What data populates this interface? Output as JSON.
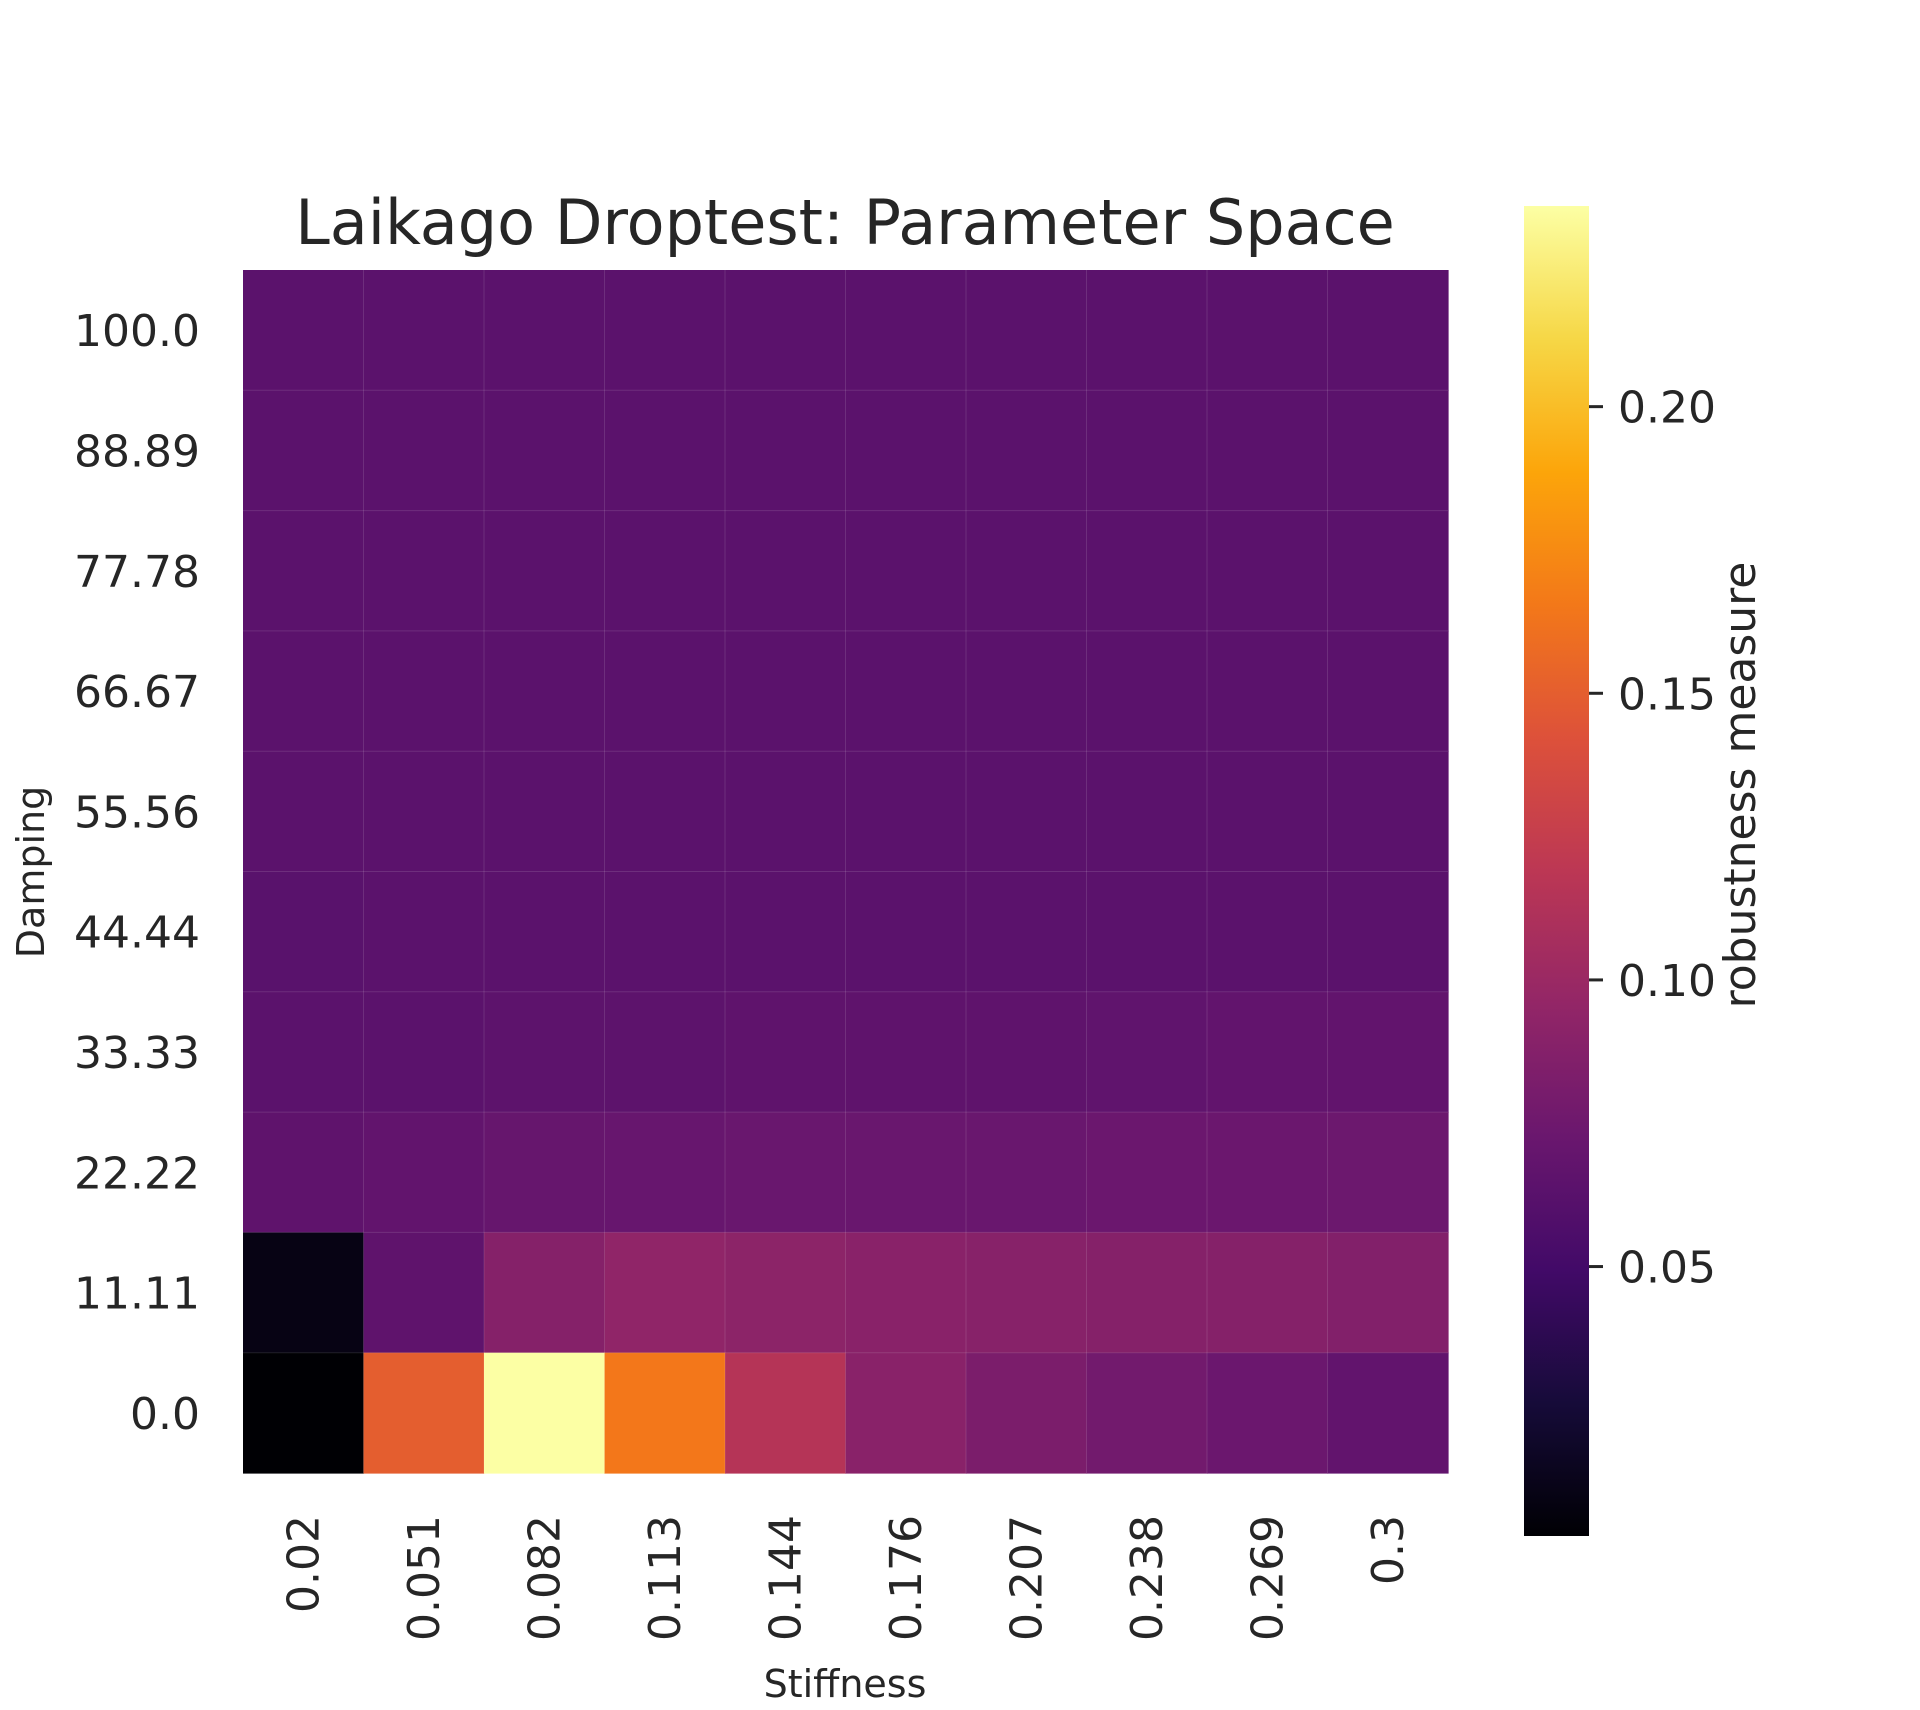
{
  "chart_data": {
    "type": "heatmap",
    "title": "Laikago Droptest: Parameter Space",
    "xlabel": "Stiffness",
    "ylabel": "Damping",
    "x_categories": [
      "0.02",
      "0.051",
      "0.082",
      "0.113",
      "0.144",
      "0.176",
      "0.207",
      "0.238",
      "0.269",
      "0.3"
    ],
    "y_categories": [
      "100.0",
      "88.89",
      "77.78",
      "66.67",
      "55.56",
      "44.44",
      "33.33",
      "22.22",
      "11.11",
      "0.0"
    ],
    "values": [
      [
        0.064,
        0.064,
        0.064,
        0.064,
        0.064,
        0.064,
        0.064,
        0.064,
        0.064,
        0.064
      ],
      [
        0.064,
        0.064,
        0.064,
        0.064,
        0.064,
        0.064,
        0.064,
        0.064,
        0.064,
        0.064
      ],
      [
        0.064,
        0.064,
        0.064,
        0.064,
        0.064,
        0.064,
        0.064,
        0.064,
        0.064,
        0.064
      ],
      [
        0.064,
        0.064,
        0.064,
        0.064,
        0.064,
        0.064,
        0.064,
        0.064,
        0.064,
        0.064
      ],
      [
        0.064,
        0.064,
        0.064,
        0.064,
        0.064,
        0.064,
        0.064,
        0.064,
        0.064,
        0.064
      ],
      [
        0.063,
        0.064,
        0.064,
        0.064,
        0.064,
        0.064,
        0.064,
        0.064,
        0.064,
        0.064
      ],
      [
        0.064,
        0.064,
        0.065,
        0.065,
        0.066,
        0.066,
        0.066,
        0.067,
        0.068,
        0.068
      ],
      [
        0.066,
        0.068,
        0.07,
        0.071,
        0.072,
        0.072,
        0.072,
        0.073,
        0.073,
        0.074
      ],
      [
        0.01,
        0.066,
        0.088,
        0.094,
        0.092,
        0.09,
        0.089,
        0.088,
        0.088,
        0.086
      ],
      [
        0.003,
        0.15,
        0.235,
        0.165,
        0.115,
        0.09,
        0.082,
        0.077,
        0.073,
        0.068
      ]
    ],
    "colorbar": {
      "label": "robustness measure",
      "colormap": "inferno",
      "range": [
        0.003,
        0.235
      ],
      "ticks": [
        0.05,
        0.1,
        0.15,
        0.2
      ],
      "tick_labels": [
        "0.05",
        "0.10",
        "0.15",
        "0.20"
      ]
    }
  }
}
